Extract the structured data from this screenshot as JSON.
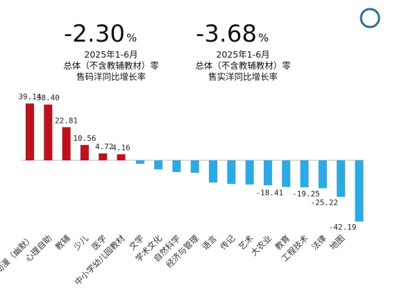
{
  "chart_data": {
    "type": "bar",
    "headlines": [
      {
        "value": "-2.30",
        "unit": "%",
        "lines": [
          "2025年1-6月",
          "总体（不含教辅教材）零",
          "售码洋同比增长率"
        ]
      },
      {
        "value": "-3.68",
        "unit": "%",
        "lines": [
          "2025年1-6月",
          "总体（不含教辅教材）零",
          "售实洋同比增长率"
        ]
      }
    ],
    "categories": [
      "动漫（幽默）",
      "心理自助",
      "教辅",
      "少儿",
      "医学",
      "中小学幼儿园教材",
      "文学",
      "学术文化",
      "自然科学",
      "经济与管理",
      "语言",
      "传记",
      "艺术",
      "大农业",
      "教育",
      "工程技术",
      "法律",
      "地图",
      null
    ],
    "values": [
      39.14,
      38.4,
      22.81,
      10.56,
      4.72,
      4.16,
      -2.4,
      -6.2,
      -8.1,
      -8.6,
      -15.3,
      -16.3,
      -16.7,
      -17.2,
      -18.41,
      -18.6,
      -19.25,
      -25.22,
      -42.19
    ],
    "value_labels": [
      "39.14",
      "38.40",
      "22.81",
      "10.56",
      "4.72",
      "4.16",
      null,
      null,
      null,
      null,
      null,
      null,
      null,
      null,
      "-18.41",
      null,
      "-19.25",
      "-25.22",
      "-42.19"
    ],
    "positive_color": "#c0101c",
    "negative_color": "#2aaae6"
  }
}
